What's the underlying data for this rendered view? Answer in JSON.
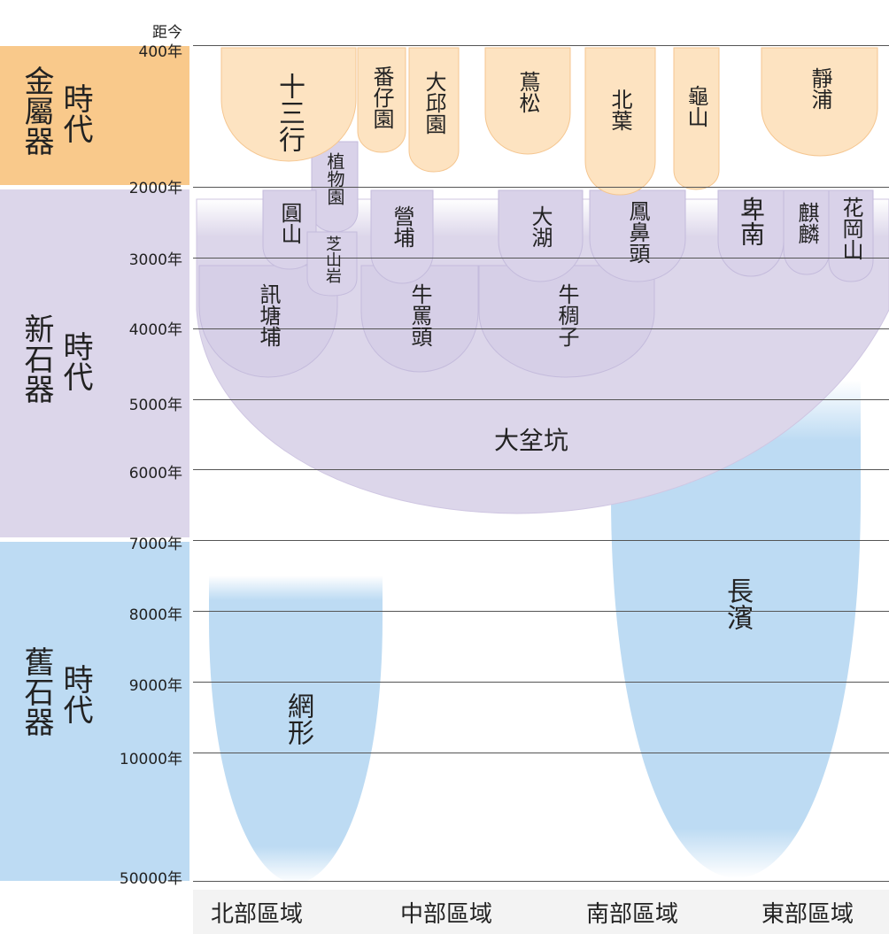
{
  "axis": {
    "header": "距今",
    "ticks": [
      "400年",
      "2000年",
      "3000年",
      "4000年",
      "5000年",
      "6000年",
      "7000年",
      "8000年",
      "9000年",
      "10000年",
      "50000年"
    ]
  },
  "eras": [
    {
      "main": "金屬器",
      "sub": "時代",
      "color": "#f9c98b"
    },
    {
      "main": "新石器",
      "sub": "時代",
      "color": "#dcd6ea"
    },
    {
      "main": "舊石器",
      "sub": "時代",
      "color": "#bddbf3"
    }
  ],
  "regions": [
    "北部區域",
    "中部區域",
    "南部區域",
    "東部區域"
  ],
  "sites": {
    "metal": [
      "十三行",
      "番仔園",
      "大邱園",
      "蔦松",
      "北葉",
      "龜山",
      "靜浦"
    ],
    "neolithic": [
      "植物園",
      "圓山",
      "芝山岩",
      "營埔",
      "大湖",
      "鳳鼻頭",
      "卑南",
      "麒麟",
      "花岡山",
      "訊塘埔",
      "牛罵頭",
      "牛稠子",
      "大坌坑"
    ],
    "paleolithic": [
      "網形",
      "長濱"
    ]
  },
  "colors": {
    "metal_fill": "#fde3c1",
    "metal_stroke": "#f5c690",
    "neo_fill": "#dcd6ea",
    "neo_stroke": "#c9c0de",
    "paleo_fill": "#bddbf3",
    "line": "#555555"
  }
}
